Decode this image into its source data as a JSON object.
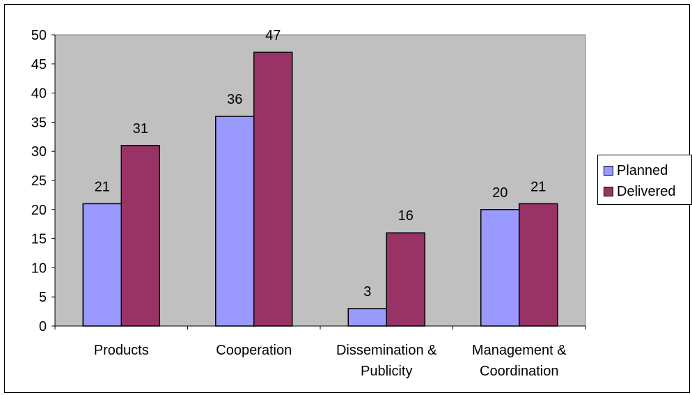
{
  "chart_data": {
    "type": "bar",
    "categories": [
      [
        "Products"
      ],
      [
        "Cooperation"
      ],
      [
        "Dissemination &",
        "Publicity"
      ],
      [
        "Management &",
        "Coordination"
      ]
    ],
    "series": [
      {
        "name": "Planned",
        "values": [
          21,
          36,
          3,
          20
        ],
        "color": "#9999ff"
      },
      {
        "name": "Delivered",
        "values": [
          31,
          47,
          16,
          21
        ],
        "color": "#993366"
      }
    ],
    "ylim": [
      0,
      50
    ],
    "yticks": [
      0,
      5,
      10,
      15,
      20,
      25,
      30,
      35,
      40,
      45,
      50
    ],
    "plot_background": "#c0c0c0",
    "grid": false,
    "legend_position": "right"
  }
}
